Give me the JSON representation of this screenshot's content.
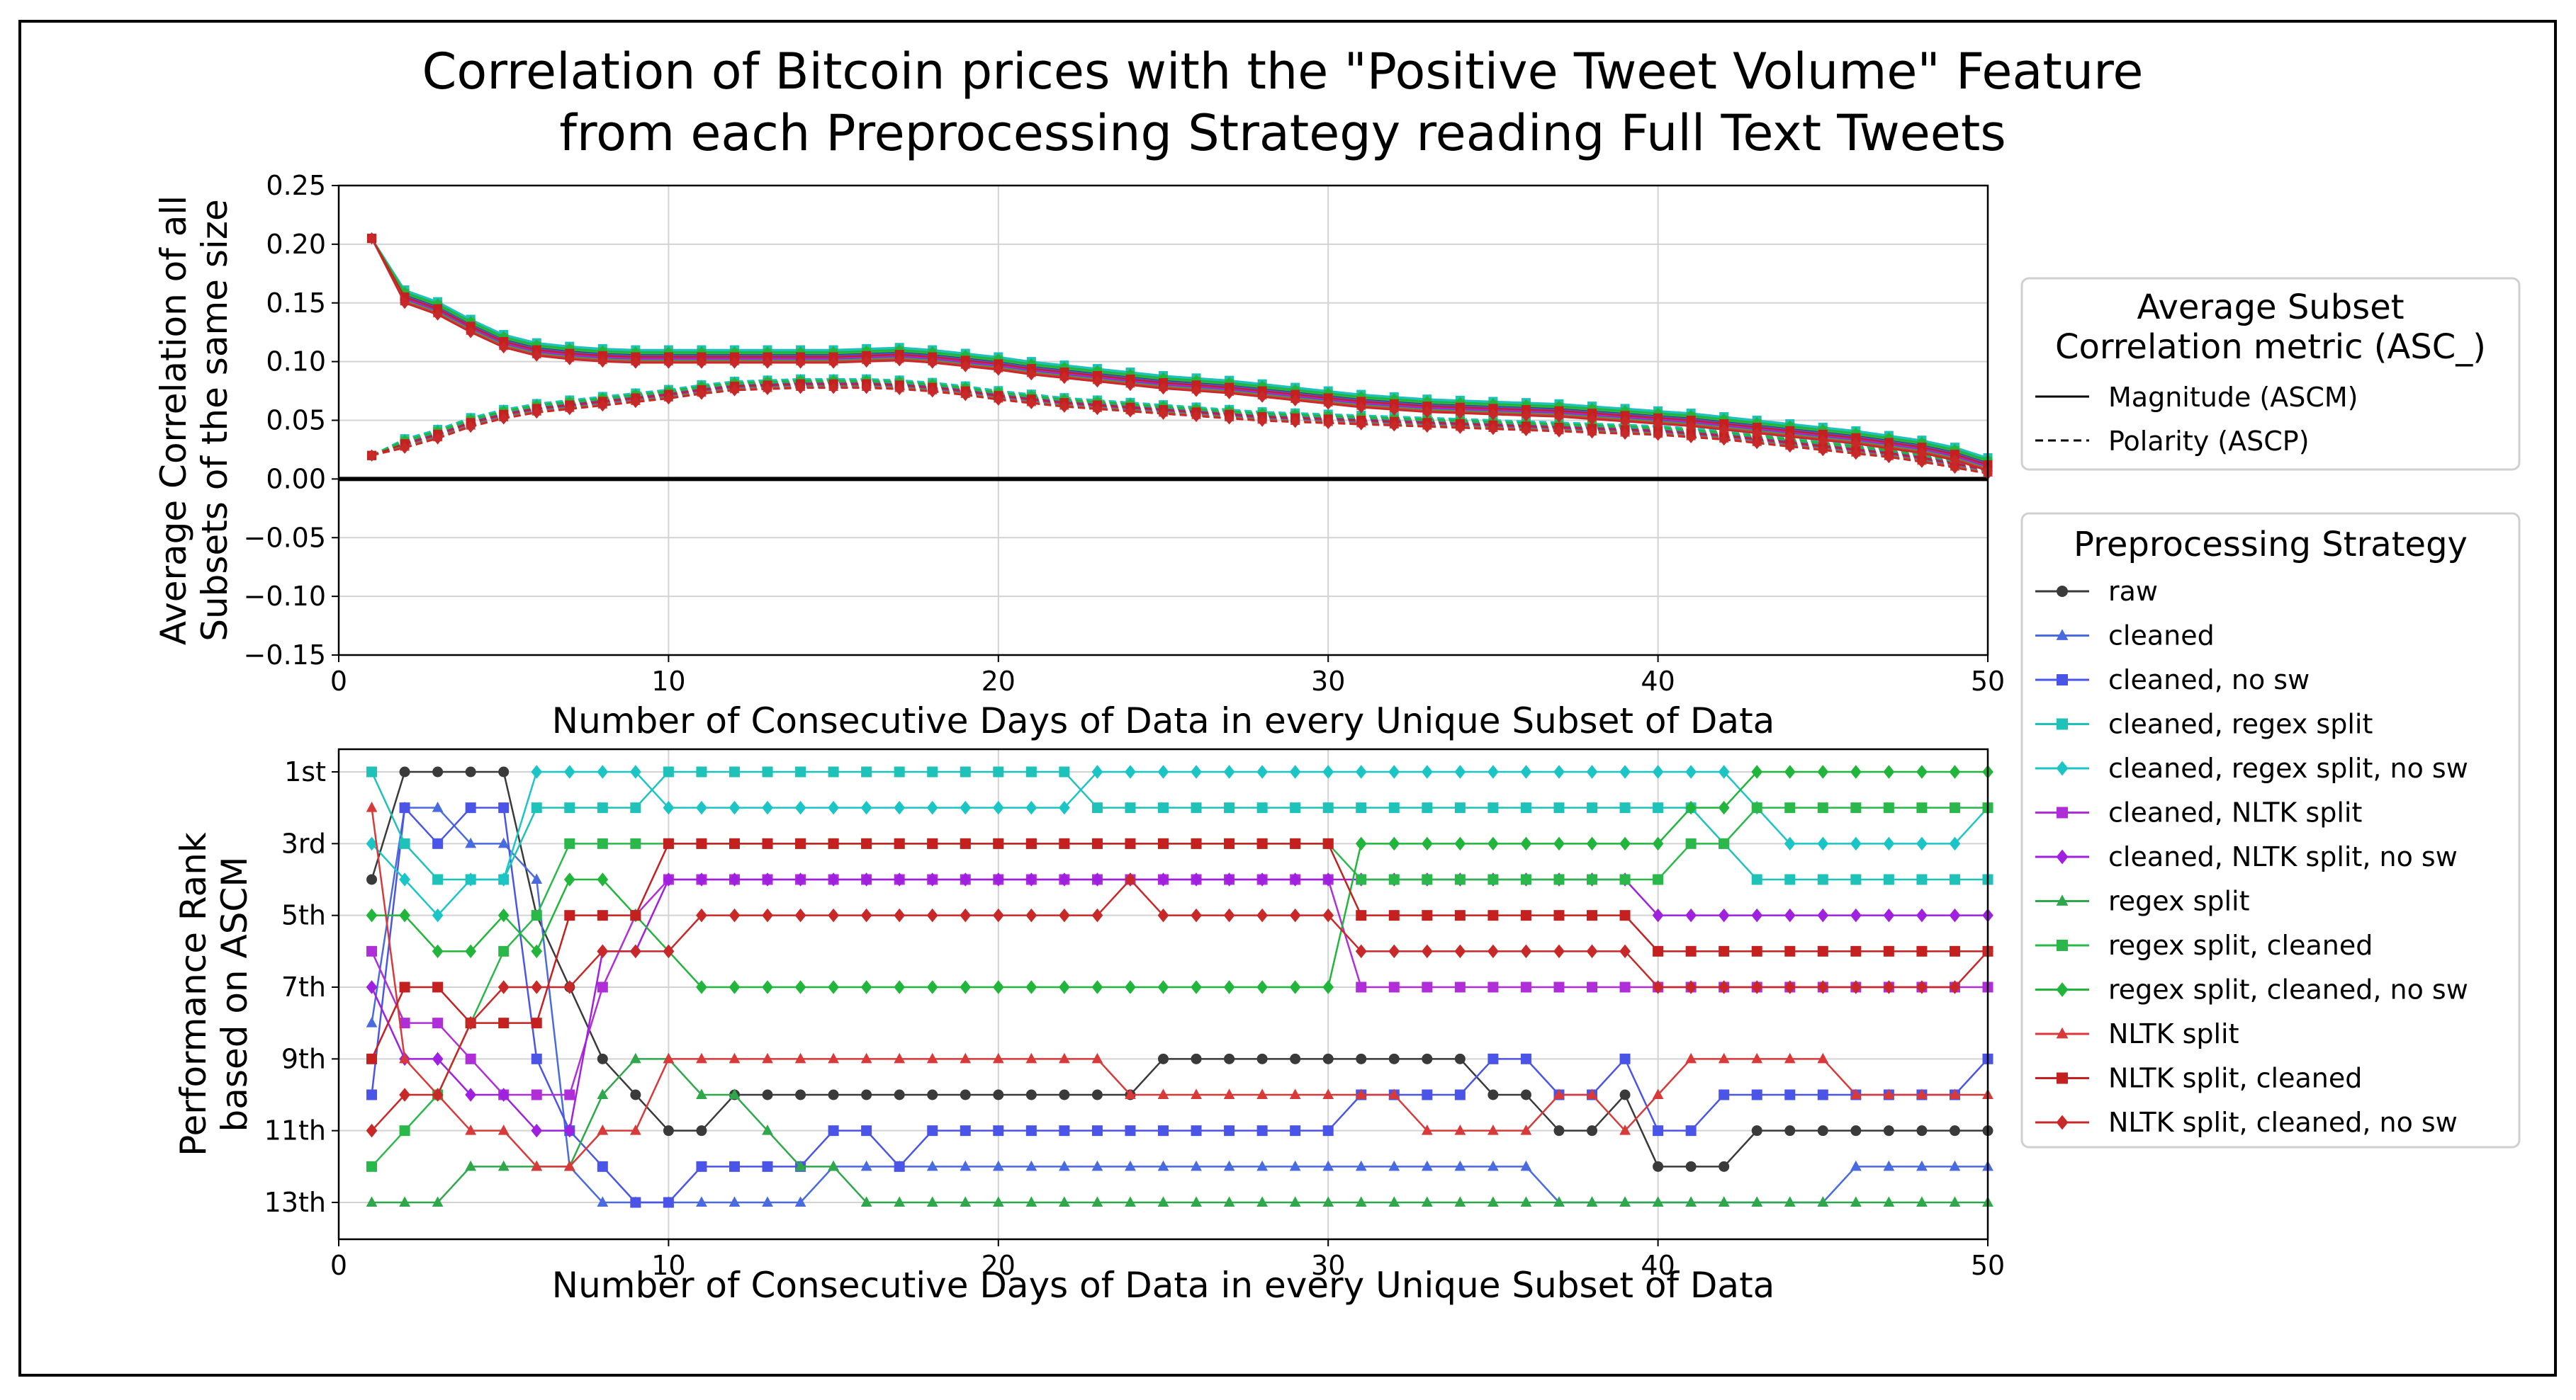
{
  "title": {
    "line1": "Correlation of Bitcoin prices with the \"Positive Tweet Volume\" Feature",
    "line2": "from each Preprocessing Strategy reading Full Text Tweets"
  },
  "chart_data": [
    {
      "type": "line",
      "xlabel": "Number of Consecutive Days of Data in every Unique Subset of Data",
      "ylabel_lines": [
        "Average Correlation of all",
        "Subsets of the same size"
      ],
      "xlim": [
        0,
        50
      ],
      "ylim": [
        -0.15,
        0.25
      ],
      "xticks": [
        "0",
        "10",
        "20",
        "30",
        "40",
        "50"
      ],
      "yticks": [
        "0.25",
        "0.20",
        "0.15",
        "0.10",
        "0.05",
        "0.00",
        "−0.05",
        "−0.10",
        "−0.15"
      ],
      "grid": true,
      "x": [
        1,
        2,
        3,
        4,
        5,
        6,
        7,
        8,
        9,
        10,
        11,
        12,
        13,
        14,
        15,
        16,
        17,
        18,
        19,
        20,
        21,
        22,
        23,
        24,
        25,
        26,
        27,
        28,
        29,
        30,
        31,
        32,
        33,
        34,
        35,
        36,
        37,
        38,
        39,
        40,
        41,
        42,
        43,
        44,
        45,
        46,
        47,
        48,
        49,
        50
      ],
      "magnitude_base": [
        0.205,
        0.155,
        0.145,
        0.13,
        0.117,
        0.11,
        0.107,
        0.105,
        0.104,
        0.104,
        0.104,
        0.104,
        0.104,
        0.104,
        0.104,
        0.105,
        0.106,
        0.104,
        0.101,
        0.098,
        0.094,
        0.091,
        0.088,
        0.085,
        0.082,
        0.08,
        0.078,
        0.075,
        0.072,
        0.069,
        0.066,
        0.064,
        0.062,
        0.061,
        0.06,
        0.059,
        0.058,
        0.056,
        0.054,
        0.052,
        0.05,
        0.047,
        0.044,
        0.041,
        0.038,
        0.035,
        0.031,
        0.027,
        0.021,
        0.012
      ],
      "polarity_base": [
        0.02,
        0.03,
        0.038,
        0.048,
        0.055,
        0.06,
        0.063,
        0.066,
        0.069,
        0.072,
        0.076,
        0.079,
        0.08,
        0.081,
        0.081,
        0.081,
        0.08,
        0.078,
        0.075,
        0.071,
        0.068,
        0.065,
        0.063,
        0.061,
        0.059,
        0.057,
        0.055,
        0.053,
        0.052,
        0.051,
        0.05,
        0.049,
        0.048,
        0.047,
        0.046,
        0.045,
        0.044,
        0.043,
        0.042,
        0.041,
        0.039,
        0.037,
        0.034,
        0.031,
        0.028,
        0.025,
        0.022,
        0.018,
        0.013,
        0.008
      ]
    },
    {
      "type": "line",
      "xlabel": "Number of Consecutive Days of Data in every Unique Subset of Data",
      "ylabel_lines": [
        "Performance Rank",
        "based on ASCM"
      ],
      "xlim": [
        0,
        50
      ],
      "ylim": [
        13,
        1
      ],
      "xticks": [
        "0",
        "10",
        "20",
        "30",
        "40",
        "50"
      ],
      "yticks": [
        "1st",
        "3rd",
        "5th",
        "7th",
        "9th",
        "11th",
        "13th"
      ],
      "grid": true,
      "series": [
        {
          "name": "raw",
          "color": "#3a3a3a",
          "marker": "circle",
          "ranks": [
            4,
            1,
            1,
            1,
            1,
            5,
            7,
            9,
            10,
            11,
            11,
            10,
            10,
            10,
            10,
            10,
            10,
            10,
            10,
            10,
            10,
            10,
            10,
            10,
            9,
            9,
            9,
            9,
            9,
            9,
            9,
            9,
            9,
            9,
            10,
            10,
            11,
            11,
            10,
            12,
            12,
            12,
            11,
            11,
            11,
            11,
            11,
            11,
            11,
            11
          ]
        },
        {
          "name": "cleaned",
          "color": "#4a6ae0",
          "marker": "triangle",
          "ranks": [
            8,
            2,
            2,
            3,
            3,
            4,
            12,
            13,
            13,
            13,
            13,
            13,
            13,
            13,
            12,
            12,
            12,
            12,
            12,
            12,
            12,
            12,
            12,
            12,
            12,
            12,
            12,
            12,
            12,
            12,
            12,
            12,
            12,
            12,
            12,
            12,
            13,
            13,
            13,
            13,
            13,
            13,
            13,
            13,
            13,
            12,
            12,
            12,
            12,
            12
          ]
        },
        {
          "name": "cleaned, no sw",
          "color": "#4a55e8",
          "marker": "square",
          "ranks": [
            10,
            2,
            3,
            2,
            2,
            9,
            11,
            12,
            13,
            13,
            12,
            12,
            12,
            12,
            11,
            11,
            12,
            11,
            11,
            11,
            11,
            11,
            11,
            11,
            11,
            11,
            11,
            11,
            11,
            11,
            10,
            10,
            10,
            10,
            9,
            9,
            10,
            10,
            9,
            11,
            11,
            10,
            10,
            10,
            10,
            10,
            10,
            10,
            10,
            9
          ]
        },
        {
          "name": "cleaned, regex split",
          "color": "#1fc2b8",
          "marker": "square",
          "ranks": [
            1,
            3,
            4,
            4,
            4,
            2,
            2,
            2,
            2,
            1,
            1,
            1,
            1,
            1,
            1,
            1,
            1,
            1,
            1,
            1,
            1,
            1,
            2,
            2,
            2,
            2,
            2,
            2,
            2,
            2,
            2,
            2,
            2,
            2,
            2,
            2,
            2,
            2,
            2,
            2,
            2,
            3,
            4,
            4,
            4,
            4,
            4,
            4,
            4,
            4
          ]
        },
        {
          "name": "cleaned, regex split, no sw",
          "color": "#1cc5c5",
          "marker": "diamond",
          "ranks": [
            3,
            4,
            5,
            4,
            4,
            1,
            1,
            1,
            1,
            2,
            2,
            2,
            2,
            2,
            2,
            2,
            2,
            2,
            2,
            2,
            2,
            2,
            1,
            1,
            1,
            1,
            1,
            1,
            1,
            1,
            1,
            1,
            1,
            1,
            1,
            1,
            1,
            1,
            1,
            1,
            1,
            1,
            2,
            3,
            3,
            3,
            3,
            3,
            3,
            2
          ]
        },
        {
          "name": "cleaned, NLTK split",
          "color": "#b02ed8",
          "marker": "square",
          "ranks": [
            6,
            8,
            8,
            9,
            10,
            10,
            10,
            7,
            5,
            4,
            4,
            4,
            4,
            4,
            4,
            4,
            4,
            4,
            4,
            4,
            4,
            4,
            4,
            4,
            4,
            4,
            4,
            4,
            4,
            4,
            7,
            7,
            7,
            7,
            7,
            7,
            7,
            7,
            7,
            7,
            7,
            7,
            7,
            7,
            7,
            7,
            7,
            7,
            7,
            7
          ]
        },
        {
          "name": "cleaned, NLTK split, no sw",
          "color": "#a020e0",
          "marker": "diamond",
          "ranks": [
            7,
            9,
            9,
            10,
            10,
            11,
            11,
            6,
            6,
            4,
            4,
            4,
            4,
            4,
            4,
            4,
            4,
            4,
            4,
            4,
            4,
            4,
            4,
            4,
            4,
            4,
            4,
            4,
            4,
            4,
            4,
            4,
            4,
            4,
            4,
            4,
            4,
            4,
            4,
            5,
            5,
            5,
            5,
            5,
            5,
            5,
            5,
            5,
            5,
            5
          ]
        },
        {
          "name": "regex split",
          "color": "#2ea84a",
          "marker": "triangle",
          "ranks": [
            13,
            13,
            13,
            12,
            12,
            12,
            12,
            10,
            9,
            9,
            10,
            10,
            11,
            12,
            12,
            13,
            13,
            13,
            13,
            13,
            13,
            13,
            13,
            13,
            13,
            13,
            13,
            13,
            13,
            13,
            13,
            13,
            13,
            13,
            13,
            13,
            13,
            13,
            13,
            13,
            13,
            13,
            13,
            13,
            13,
            13,
            13,
            13,
            13,
            13
          ]
        },
        {
          "name": "regex split, cleaned",
          "color": "#2bb84a",
          "marker": "square",
          "ranks": [
            12,
            11,
            10,
            8,
            6,
            5,
            3,
            3,
            3,
            3,
            3,
            3,
            3,
            3,
            3,
            3,
            3,
            3,
            3,
            3,
            3,
            3,
            3,
            3,
            3,
            3,
            3,
            3,
            3,
            3,
            4,
            4,
            4,
            4,
            4,
            4,
            4,
            4,
            4,
            4,
            3,
            3,
            2,
            2,
            2,
            2,
            2,
            2,
            2,
            2
          ]
        },
        {
          "name": "regex split, cleaned, no sw",
          "color": "#22b53c",
          "marker": "diamond",
          "ranks": [
            5,
            5,
            6,
            6,
            5,
            6,
            4,
            4,
            5,
            6,
            7,
            7,
            7,
            7,
            7,
            7,
            7,
            7,
            7,
            7,
            7,
            7,
            7,
            7,
            7,
            7,
            7,
            7,
            7,
            7,
            3,
            3,
            3,
            3,
            3,
            3,
            3,
            3,
            3,
            3,
            2,
            2,
            1,
            1,
            1,
            1,
            1,
            1,
            1,
            1
          ]
        },
        {
          "name": "NLTK split",
          "color": "#d83a3a",
          "marker": "triangle",
          "ranks": [
            2,
            9,
            10,
            11,
            11,
            12,
            12,
            11,
            11,
            9,
            9,
            9,
            9,
            9,
            9,
            9,
            9,
            9,
            9,
            9,
            9,
            9,
            9,
            10,
            10,
            10,
            10,
            10,
            10,
            10,
            10,
            10,
            11,
            11,
            11,
            11,
            10,
            10,
            11,
            10,
            9,
            9,
            9,
            9,
            9,
            10,
            10,
            10,
            10,
            10
          ]
        },
        {
          "name": "NLTK split, cleaned",
          "color": "#c42020",
          "marker": "square",
          "ranks": [
            9,
            7,
            7,
            8,
            8,
            8,
            5,
            5,
            5,
            3,
            3,
            3,
            3,
            3,
            3,
            3,
            3,
            3,
            3,
            3,
            3,
            3,
            3,
            3,
            3,
            3,
            3,
            3,
            3,
            3,
            5,
            5,
            5,
            5,
            5,
            5,
            5,
            5,
            5,
            6,
            6,
            6,
            6,
            6,
            6,
            6,
            6,
            6,
            6,
            6
          ]
        },
        {
          "name": "NLTK split, cleaned, no sw",
          "color": "#c82828",
          "marker": "diamond",
          "ranks": [
            11,
            10,
            10,
            8,
            7,
            7,
            7,
            6,
            6,
            6,
            5,
            5,
            5,
            5,
            5,
            5,
            5,
            5,
            5,
            5,
            5,
            5,
            5,
            4,
            5,
            5,
            5,
            5,
            5,
            5,
            6,
            6,
            6,
            6,
            6,
            6,
            6,
            6,
            6,
            7,
            7,
            7,
            7,
            7,
            7,
            7,
            7,
            7,
            7,
            6
          ]
        }
      ]
    }
  ],
  "legend_metric": {
    "title_line1": "Average Subset",
    "title_line2": "Correlation metric (ASC_)",
    "items": [
      {
        "label": "Magnitude (ASCM)",
        "style": "solid"
      },
      {
        "label": "Polarity (ASCP)",
        "style": "dashed"
      }
    ]
  },
  "legend_strategy": {
    "title": "Preprocessing Strategy"
  }
}
